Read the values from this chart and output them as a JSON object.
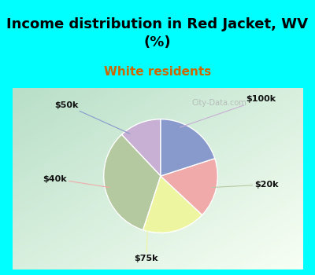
{
  "title": "Income distribution in Red Jacket, WV\n(%)",
  "subtitle": "White residents",
  "title_color": "#000000",
  "subtitle_color": "#cc6600",
  "background_top": "#00ffff",
  "slices": [
    {
      "label": "$100k",
      "value": 12,
      "color": "#c8afd4"
    },
    {
      "label": "$20k",
      "value": 33,
      "color": "#b5c9a0"
    },
    {
      "label": "$75k",
      "value": 18,
      "color": "#eef5a0"
    },
    {
      "label": "$40k",
      "value": 17,
      "color": "#f0aaaa"
    },
    {
      "label": "$50k",
      "value": 20,
      "color": "#8899cc"
    }
  ],
  "label_color": "#111111",
  "label_fontsize": 8,
  "title_fontsize": 13,
  "subtitle_fontsize": 11,
  "watermark": "City-Data.com",
  "watermark_color": "#aaaaaa"
}
